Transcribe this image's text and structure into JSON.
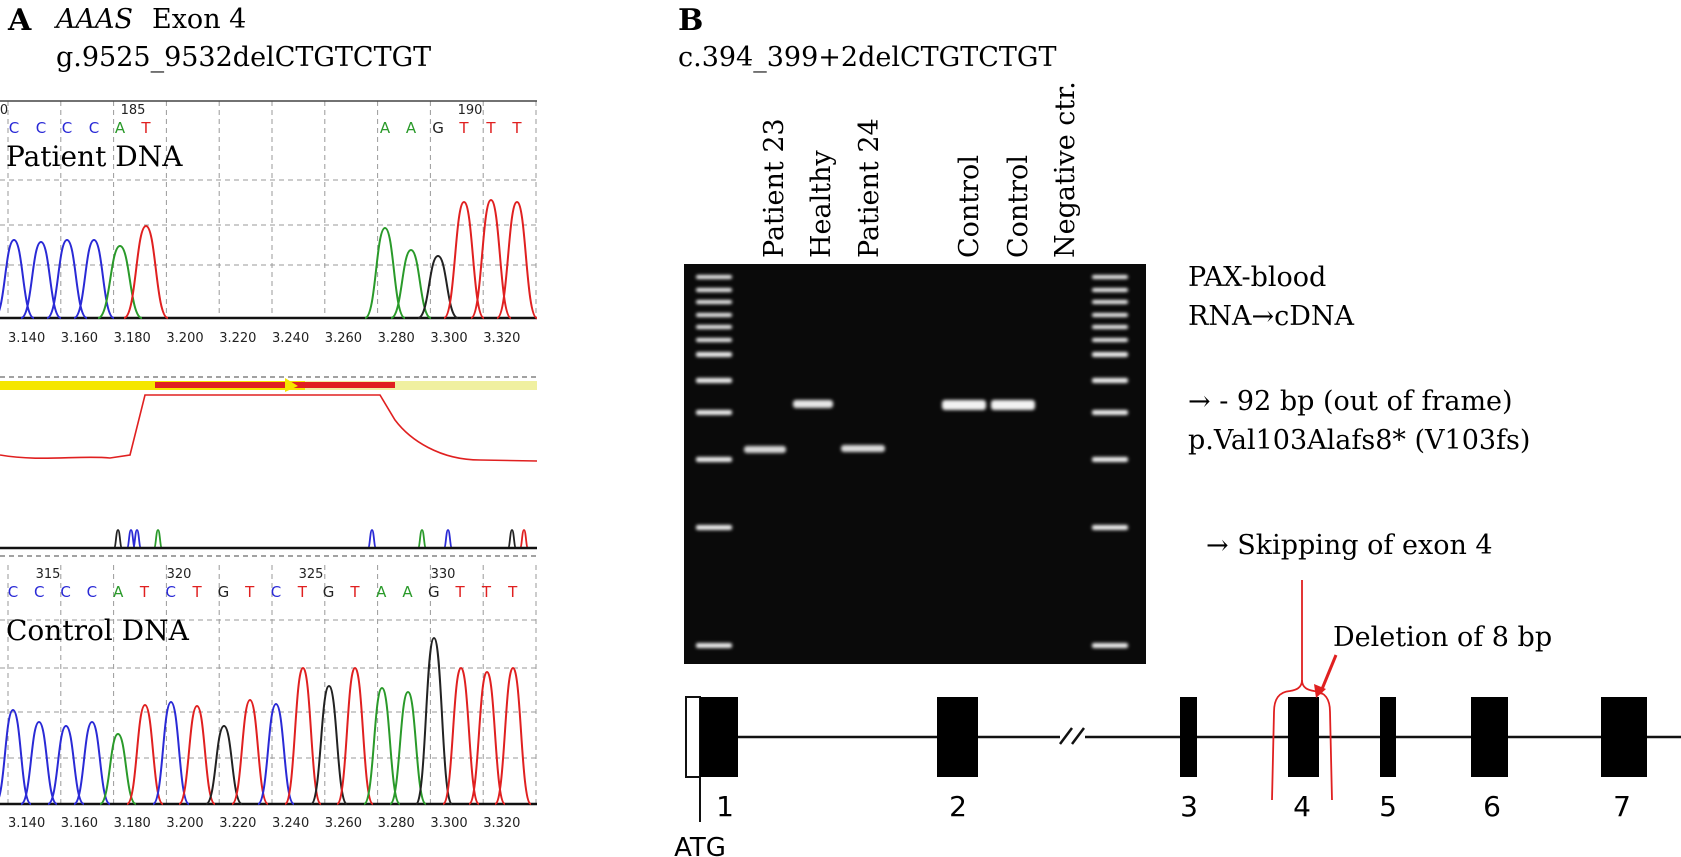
{
  "panel_a": {
    "letter": "A",
    "gene": "AAAS",
    "exon": "Exon 4",
    "variant": "g.9525_9532delCTGTCTGT",
    "patient_label": "Patient DNA",
    "control_label": "Control DNA",
    "top_position_ticks": [
      "0",
      "185",
      "190"
    ],
    "top_bases": [
      "C",
      "C",
      "C",
      "C",
      "A",
      "T",
      "A",
      "A",
      "G",
      "T",
      "T",
      "T"
    ],
    "top_axis_ticks": [
      "3.140",
      "3.160",
      "3.180",
      "3.200",
      "3.220",
      "3.240",
      "3.260",
      "3.280",
      "3.300",
      "3.320"
    ],
    "bottom_position_ticks": [
      "315",
      "320",
      "325",
      "330"
    ],
    "bottom_bases": [
      "C",
      "C",
      "C",
      "C",
      "A",
      "T",
      "C",
      "T",
      "G",
      "T",
      "C",
      "T",
      "G",
      "T",
      "A",
      "A",
      "G",
      "T",
      "T",
      "T"
    ],
    "bottom_axis_ticks": [
      "3.140",
      "3.160",
      "3.180",
      "3.200",
      "3.220",
      "3.240",
      "3.260",
      "3.280",
      "3.300",
      "3.320"
    ],
    "base_colors": {
      "A": "#2a9a2a",
      "C": "#2a2ad6",
      "G": "#222222",
      "T": "#e02020"
    }
  },
  "panel_b": {
    "letter": "B",
    "variant": "c.394_399+2delCTGTCTGT",
    "lanes": [
      "Patient 23",
      "Healthy",
      "Patient 24",
      "Control",
      "Control",
      "Negative ctr."
    ],
    "sample_line1": "PAX-blood",
    "sample_line2": "RNA→cDNA",
    "result_line1": "→ - 92 bp (out of frame)",
    "result_line2": "p.Val103Alafs8* (V103fs)",
    "skipping_label": "→ Skipping of exon 4",
    "deletion_label": "Deletion of 8 bp",
    "atg_label": "ATG",
    "exon_numbers": [
      "1",
      "2",
      "3",
      "4",
      "5",
      "6",
      "7"
    ],
    "highlight_color": "#e02020"
  }
}
